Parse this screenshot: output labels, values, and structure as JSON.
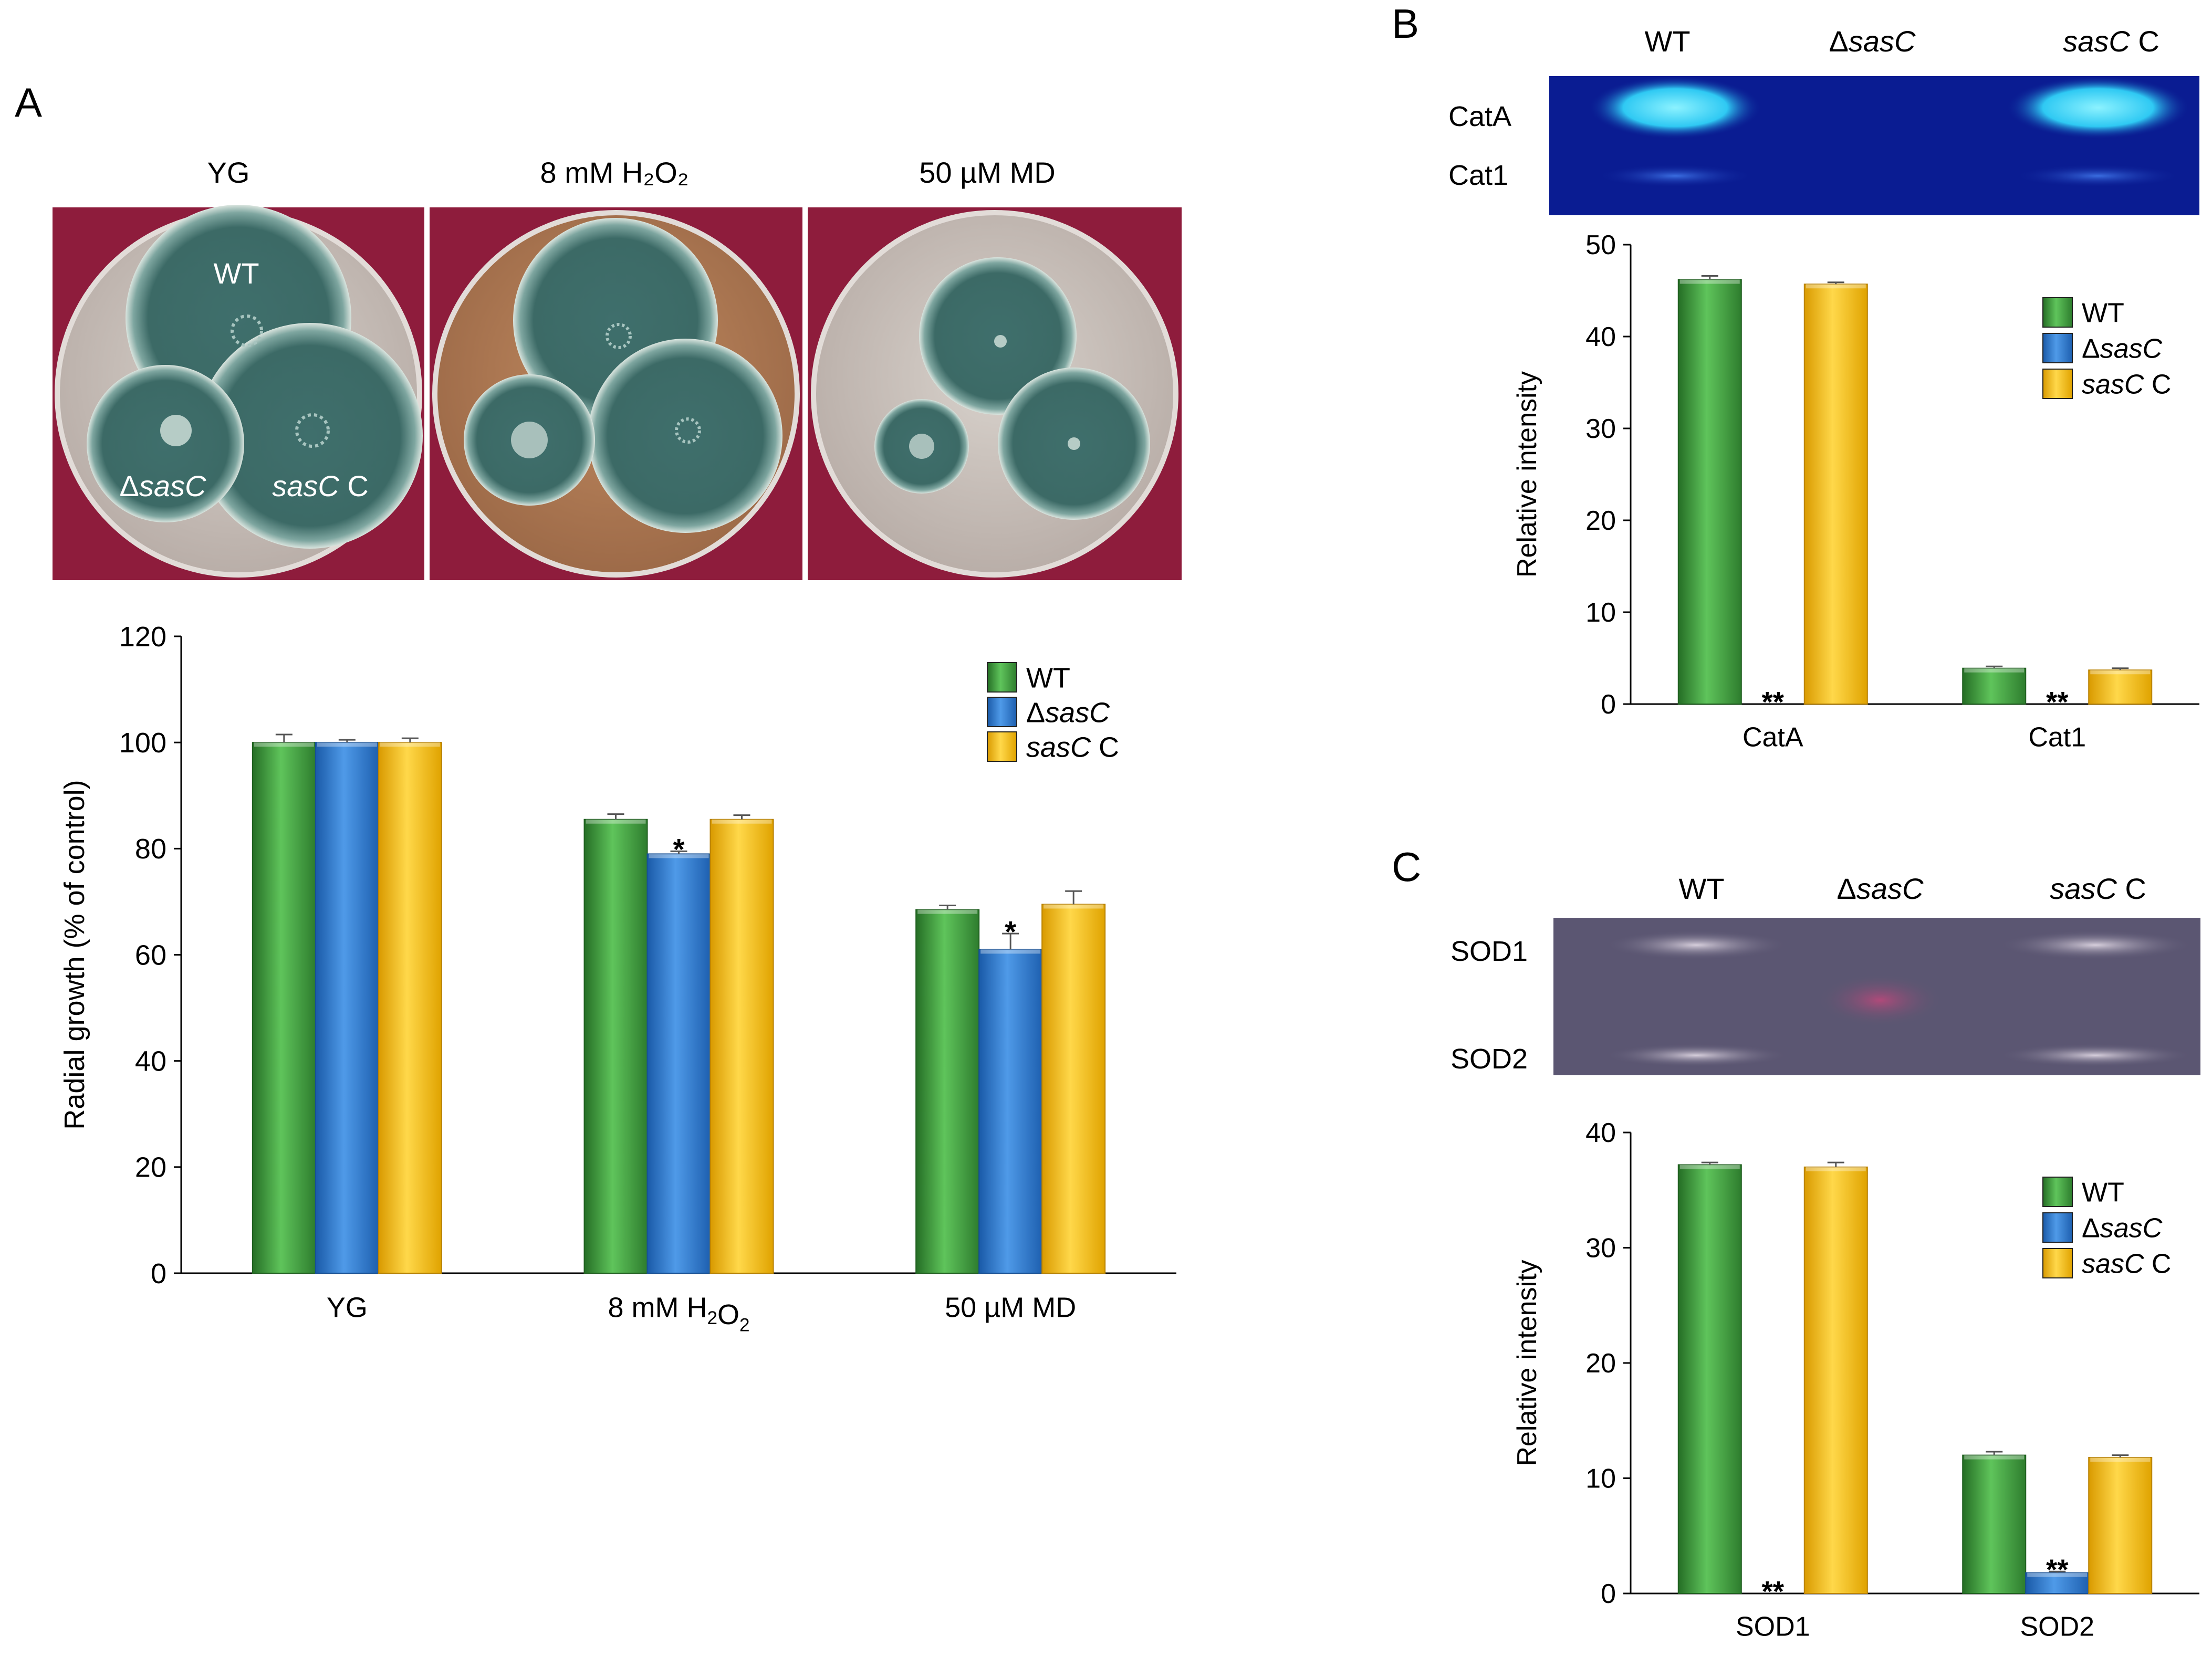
{
  "panel_labels": {
    "a": "A",
    "b": "B",
    "c": "C"
  },
  "colors": {
    "wt": "#3e9e3e",
    "dsasc": "#2a78d0",
    "sascc": "#f7c200",
    "plate_bg": "#8e1c3c",
    "blue_gel": "#0a1c92",
    "gray_gel": "#5b5672"
  },
  "photo_a": {
    "col_labels": [
      "YG",
      "8 mM H₂O₂",
      "50 µM MD"
    ],
    "plate_labels": {
      "wt": "WT",
      "delta": "Δ",
      "sasc": "sasC",
      "c": " C"
    }
  },
  "gel_b": {
    "lanes": {
      "wt": "WT",
      "delta": "Δ",
      "sasc": "sasC",
      "c": " C"
    },
    "bands": [
      "CatA",
      "Cat1"
    ]
  },
  "gel_c": {
    "lanes": {
      "wt": "WT",
      "delta": "Δ",
      "sasc": "sasC",
      "c": " C"
    },
    "bands": [
      "SOD1",
      "SOD2"
    ]
  },
  "chart_data": [
    {
      "id": "A",
      "type": "bar",
      "categories": [
        "YG",
        "8 mM H₂O₂",
        "50 µM MD"
      ],
      "ylabel": "Radial growth (% of control)",
      "xlabel": "",
      "ylim": [
        0,
        120
      ],
      "yticks": [
        0,
        20,
        40,
        60,
        80,
        100,
        120
      ],
      "series": [
        {
          "key": "wt",
          "name": "WT",
          "values": [
            100,
            85.5,
            68.5
          ],
          "errors": [
            1.5,
            1.0,
            0.8
          ]
        },
        {
          "key": "dsasc",
          "name": "ΔsasC",
          "values": [
            100,
            79,
            61
          ],
          "errors": [
            0.5,
            0.5,
            3.0
          ]
        },
        {
          "key": "sascc",
          "name": "sasC C",
          "values": [
            100,
            85.5,
            69.5
          ],
          "errors": [
            0.8,
            0.8,
            2.5
          ]
        }
      ],
      "annotations": [
        {
          "category": 1,
          "series": 1,
          "text": "*"
        },
        {
          "category": 2,
          "series": 1,
          "text": "*"
        }
      ],
      "legend": "top-right"
    },
    {
      "id": "B",
      "type": "bar",
      "categories": [
        "CatA",
        "Cat1"
      ],
      "ylabel": "Relative intensity",
      "xlabel": "",
      "ylim": [
        0,
        50
      ],
      "yticks": [
        0,
        10,
        20,
        30,
        40,
        50
      ],
      "series": [
        {
          "key": "wt",
          "name": "WT",
          "values": [
            46.2,
            3.9
          ],
          "errors": [
            0.4,
            0.2
          ]
        },
        {
          "key": "dsasc",
          "name": "ΔsasC",
          "values": [
            0,
            0
          ],
          "errors": [
            0,
            0
          ]
        },
        {
          "key": "sascc",
          "name": "sasC C",
          "values": [
            45.7,
            3.7
          ],
          "errors": [
            0.2,
            0.2
          ]
        }
      ],
      "annotations": [
        {
          "category": 0,
          "series": 1,
          "text": "**"
        },
        {
          "category": 1,
          "series": 1,
          "text": "**"
        }
      ],
      "legend": "top-right"
    },
    {
      "id": "C",
      "type": "bar",
      "categories": [
        "SOD1",
        "SOD2"
      ],
      "ylabel": "Relative intensity",
      "xlabel": "",
      "ylim": [
        0,
        40
      ],
      "yticks": [
        0,
        10,
        20,
        30,
        40
      ],
      "series": [
        {
          "key": "wt",
          "name": "WT",
          "values": [
            37.2,
            12.0
          ],
          "errors": [
            0.2,
            0.3
          ]
        },
        {
          "key": "dsasc",
          "name": "ΔsasC",
          "values": [
            0,
            1.8
          ],
          "errors": [
            0,
            0.1
          ]
        },
        {
          "key": "sascc",
          "name": "sasC C",
          "values": [
            37.0,
            11.8
          ],
          "errors": [
            0.4,
            0.2
          ]
        }
      ],
      "annotations": [
        {
          "category": 0,
          "series": 1,
          "text": "**"
        },
        {
          "category": 1,
          "series": 1,
          "text": "**"
        }
      ],
      "legend": "top-right"
    }
  ]
}
